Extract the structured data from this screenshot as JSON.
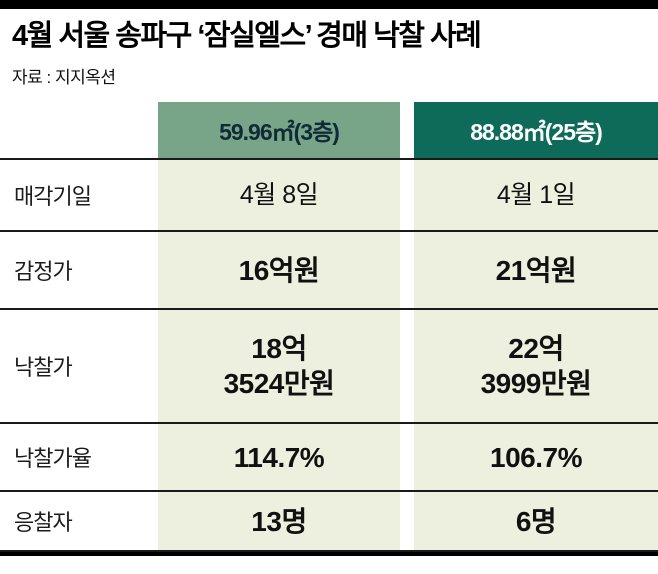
{
  "chart_data": {
    "type": "table",
    "title": "4월 서울 송파구 ‘잠실엘스’ 경매 낙찰 사례",
    "source": "자료 : 지지옥션",
    "columns": [
      "59.96㎡(3층)",
      "88.88㎡(25층)"
    ],
    "rows": [
      {
        "label": "매각기일",
        "values": [
          "4월 8일",
          "4월 1일"
        ]
      },
      {
        "label": "감정가",
        "values": [
          "16억원",
          "21억원"
        ]
      },
      {
        "label": "낙찰가",
        "values": [
          "18억\n3524만원",
          "22억\n3999만원"
        ]
      },
      {
        "label": "낙찰가율",
        "values": [
          "114.7%",
          "106.7%"
        ]
      },
      {
        "label": "응찰자",
        "values": [
          "13명",
          "6명"
        ]
      }
    ],
    "layout_hints": {
      "legend_position": "none",
      "grid": "horizontal-rules",
      "column_header_style": "colored-blocks"
    }
  },
  "colors": {
    "column1_header_bg": "#78a488",
    "column1_header_text": "#0f2b38",
    "column2_header_bg": "#0e6a59",
    "column2_header_text": "#ffffff",
    "value_cell_bg": "#eef0df",
    "rule_color": "#1a1a1a",
    "frame_bar": "#000000"
  }
}
